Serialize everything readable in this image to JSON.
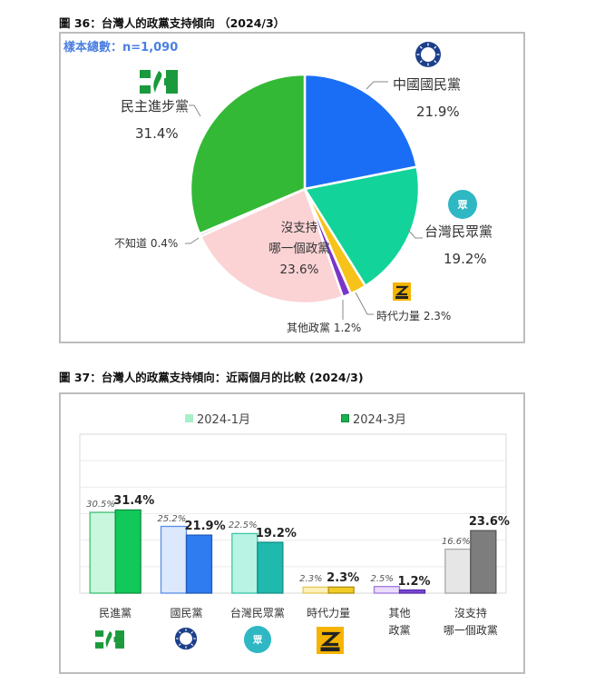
{
  "figure36": {
    "title": "圖 36：台灣人的政黨支持傾向 （2024/3）",
    "sample": "樣本總數：n=1,090"
  },
  "figure37": {
    "title": "圖 37：台灣人的政黨支持傾向：近兩個月的比較 (2024/3)",
    "legend": [
      {
        "label": "2024-1月",
        "color": "#a8f0c8"
      },
      {
        "label": "2024-3月",
        "color": "#18b050"
      }
    ]
  },
  "icons": {
    "dpp": "dpp-logo-icon",
    "kmt": "kmt-logo-icon",
    "tpp": "tpp-logo-icon",
    "npp": "npp-logo-icon"
  },
  "chart_data": [
    {
      "type": "pie",
      "title": "圖 36：台灣人的政黨支持傾向 （2024/3）",
      "subtitle": "樣本總數：n=1,090",
      "categories": [
        "中國國民黨",
        "台灣民眾黨",
        "時代力量",
        "其他政黨",
        "沒支持哪一個政黨",
        "不知道",
        "民主進步黨"
      ],
      "values": [
        21.9,
        19.2,
        2.3,
        1.2,
        23.6,
        0.4,
        31.4
      ],
      "labels": [
        "中國國民黨 21.9%",
        "台灣民眾黨 19.2%",
        "時代力量 2.3%",
        "其他政黨 1.2%",
        "沒支持哪一個政黨 23.6%",
        "不知道 0.4%",
        "民主進步黨 31.4%"
      ],
      "colors": [
        "#1a6ef5",
        "#12d49a",
        "#f7c21a",
        "#7a35c8",
        "#fbd3d5",
        "#c0c0c0",
        "#33b936"
      ],
      "display": {
        "kmt_name": "中國國民黨",
        "kmt_pct": "21.9%",
        "tpp_name": "台灣民眾黨",
        "tpp_pct": "19.2%",
        "npp": "時代力量 2.3%",
        "other": "其他政黨 1.2%",
        "none_l1": "沒支持",
        "none_l2": "哪一個政黨",
        "none_pct": "23.6%",
        "unknown": "不知道 0.4%",
        "dpp_name": "民主進步黨",
        "dpp_pct": "31.4%"
      }
    },
    {
      "type": "bar",
      "title": "圖 37：台灣人的政黨支持傾向：近兩個月的比較 (2024/3)",
      "categories": [
        "民進黨",
        "國民黨",
        "台灣民眾黨",
        "時代力量",
        "其他政黨",
        "沒支持哪一個政黨"
      ],
      "category_lines": [
        [
          "民進黨"
        ],
        [
          "國民黨"
        ],
        [
          "台灣民眾黨"
        ],
        [
          "時代力量"
        ],
        [
          "其他",
          "政黨"
        ],
        [
          "沒支持",
          "哪一個政黨"
        ]
      ],
      "series": [
        {
          "name": "2024-1月",
          "values": [
            30.5,
            25.2,
            22.5,
            2.3,
            2.5,
            16.6
          ],
          "labels": [
            "30.5%",
            "25.2%",
            "22.5%",
            "2.3%",
            "2.5%",
            "16.6%"
          ]
        },
        {
          "name": "2024-3月",
          "values": [
            31.4,
            21.9,
            19.2,
            2.3,
            1.2,
            23.6
          ],
          "labels": [
            "31.4%",
            "21.9%",
            "19.2%",
            "2.3%",
            "1.2%",
            "23.6%"
          ]
        }
      ],
      "bar_colors": {
        "old": [
          "#c9f7dd",
          "#dce8fb",
          "#b8f3e3",
          "#fdf0b8",
          "#eadcfb",
          "#e6e6e6"
        ],
        "new": [
          "#11c95a",
          "#2f7cf0",
          "#1fb9ae",
          "#f2cc25",
          "#7b45d8",
          "#7d7d7d"
        ],
        "old_border": [
          "#3cbf72",
          "#5a8ee8",
          "#3cc7a8",
          "#e6c85a",
          "#a07ae0",
          "#a8a8a8"
        ],
        "new_border": [
          "#0e8f40",
          "#1f5ab8",
          "#158f86",
          "#b08f10",
          "#5530a8",
          "#555555"
        ]
      },
      "ylim": [
        0,
        60
      ],
      "grid": true,
      "legend_position": "top"
    }
  ]
}
